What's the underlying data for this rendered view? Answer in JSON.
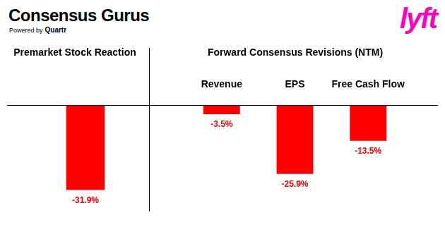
{
  "header": {
    "title": "Consensus Gurus",
    "subtitle": "Powered by",
    "brand": "Quartr",
    "logo": "lyft"
  },
  "chart_data": [
    {
      "type": "bar",
      "title": "Premarket Stock Reaction",
      "categories": [
        null
      ],
      "values": [
        -31.9
      ],
      "value_labels": [
        "-31.9%"
      ],
      "color": "#ff0000",
      "ylim": [
        -40,
        0
      ],
      "grid": false,
      "data_labels": true,
      "tick_labels": false
    },
    {
      "type": "bar",
      "title": "Forward Consensus Revisions (NTM)",
      "categories": [
        "Revenue",
        "EPS",
        "Free Cash Flow"
      ],
      "values": [
        -3.5,
        -25.9,
        -13.5
      ],
      "value_labels": [
        "-3.5%",
        "-25.9%",
        "-13.5%"
      ],
      "color": "#ff0000",
      "ylim": [
        -40,
        0
      ],
      "grid": false,
      "data_labels": true,
      "tick_labels": "x"
    }
  ]
}
